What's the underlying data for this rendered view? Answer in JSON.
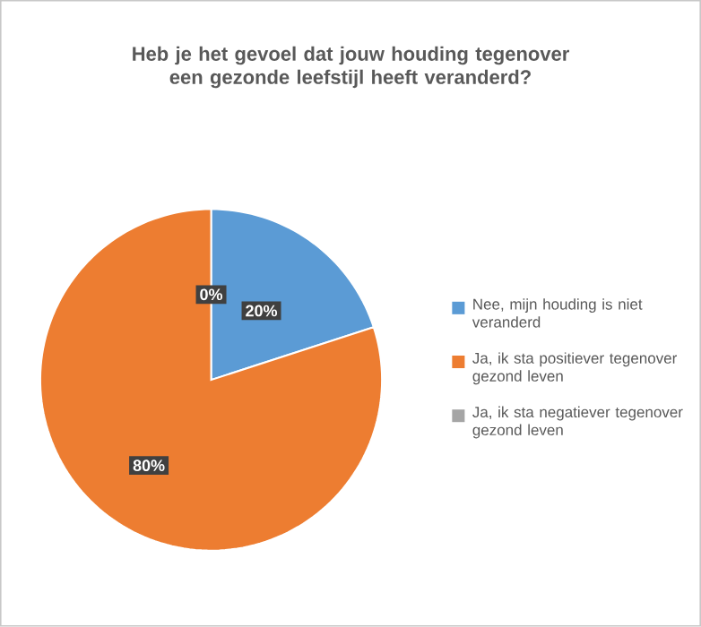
{
  "chart_data": {
    "type": "pie",
    "title": "Heb je het gevoel dat jouw houding tegenover een gezonde leefstijl heeft veranderd?",
    "categories": [
      "Nee, mijn houding is niet veranderd",
      "Ja, ik sta positiever tegenover gezond leven",
      "Ja, ik sta negatiever tegenover gezond leven"
    ],
    "values": [
      20,
      80,
      0
    ],
    "colors": [
      "#5b9bd5",
      "#ed7d31",
      "#a5a5a5"
    ],
    "value_labels": [
      "20%",
      "80%",
      "0%"
    ],
    "legend": "right"
  }
}
